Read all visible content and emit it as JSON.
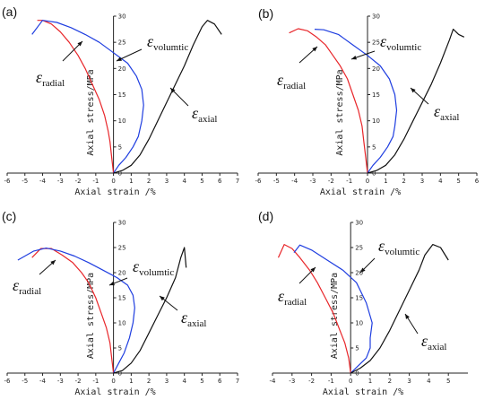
{
  "chart_data": [
    {
      "type": "line",
      "panel_label": "(a)",
      "xlabel": "Axial strain /%",
      "ylabel": "Axial stress/MPa",
      "xlim": [
        -6,
        7
      ],
      "ylim": [
        0,
        30
      ],
      "xticks": [
        -6,
        -5,
        -4,
        -3,
        -2,
        -1,
        0,
        1,
        2,
        3,
        4,
        5,
        6,
        7
      ],
      "yticks": [
        0,
        5,
        10,
        15,
        20,
        25,
        30
      ],
      "series": [
        {
          "name": "radial",
          "color": "#e8262a",
          "x": [
            0,
            -0.1,
            -0.2,
            -0.3,
            -0.5,
            -0.8,
            -1.2,
            -1.6,
            -2.0,
            -2.5,
            -3.0,
            -3.5,
            -4.0,
            -4.3
          ],
          "y": [
            0,
            3,
            6,
            8,
            11,
            14,
            17,
            20,
            22.5,
            25,
            27,
            28.5,
            29.2,
            29.2
          ]
        },
        {
          "name": "volumtic",
          "color": "#1f3ee0",
          "x": [
            0,
            0.3,
            0.7,
            1.1,
            1.4,
            1.6,
            1.7,
            1.6,
            1.3,
            0.8,
            0,
            -0.8,
            -1.6,
            -2.4,
            -3.2,
            -4.0,
            -4.6
          ],
          "y": [
            0,
            1.5,
            3,
            5,
            7,
            10,
            13,
            16,
            18.5,
            21,
            23,
            25,
            26.5,
            27.8,
            28.8,
            29.2,
            26.5
          ]
        },
        {
          "name": "axial",
          "color": "#111111",
          "x": [
            0,
            0.5,
            1.0,
            1.5,
            2.0,
            2.5,
            3.0,
            3.5,
            4.0,
            4.5,
            5.0,
            5.3,
            5.7,
            6.1
          ],
          "y": [
            0,
            0.5,
            1.5,
            3.5,
            6.5,
            10,
            13.5,
            17,
            20.5,
            24.5,
            28,
            29.2,
            28.5,
            26.5
          ]
        }
      ],
      "annotations": [
        {
          "symbol": "ε",
          "sub": "radial"
        },
        {
          "symbol": "ε",
          "sub": "volumtic"
        },
        {
          "symbol": "ε",
          "sub": "axial"
        }
      ]
    },
    {
      "type": "line",
      "panel_label": "(b)",
      "xlabel": "Axial strain /%",
      "ylabel": "Axial stress/MPa",
      "xlim": [
        -6,
        6
      ],
      "ylim": [
        0,
        30
      ],
      "xticks": [
        -6,
        -5,
        -4,
        -3,
        -2,
        -1,
        0,
        1,
        2,
        3,
        4,
        5,
        6
      ],
      "yticks": [
        0,
        5,
        10,
        15,
        20,
        25,
        30
      ],
      "series": [
        {
          "name": "radial",
          "color": "#e8262a",
          "x": [
            0,
            -0.1,
            -0.2,
            -0.3,
            -0.5,
            -0.8,
            -1.1,
            -1.5,
            -1.9,
            -2.3,
            -2.8,
            -3.3,
            -3.8,
            -4.3
          ],
          "y": [
            0,
            3,
            6,
            9,
            12,
            15,
            18,
            20.5,
            22.5,
            24.5,
            26,
            27.2,
            27.6,
            26.8
          ]
        },
        {
          "name": "volumtic",
          "color": "#1f3ee0",
          "x": [
            0,
            0.3,
            0.7,
            1.1,
            1.4,
            1.5,
            1.6,
            1.5,
            1.2,
            0.7,
            0,
            -0.8,
            -1.6,
            -2.4,
            -2.9
          ],
          "y": [
            0,
            1.5,
            3,
            5,
            7,
            9,
            12,
            15,
            18,
            20.5,
            22.5,
            24.5,
            26.5,
            27.4,
            27.5
          ]
        },
        {
          "name": "axial",
          "color": "#111111",
          "x": [
            0,
            0.5,
            1.0,
            1.5,
            2.0,
            2.5,
            3.0,
            3.5,
            4.0,
            4.5,
            4.7,
            5.0,
            5.3
          ],
          "y": [
            0,
            0.5,
            1.5,
            3.5,
            6.5,
            10,
            13.5,
            17,
            21,
            25.5,
            27.5,
            26.5,
            26
          ]
        }
      ],
      "annotations": [
        {
          "symbol": "ε",
          "sub": "radial"
        },
        {
          "symbol": "ε",
          "sub": "volumtic"
        },
        {
          "symbol": "ε",
          "sub": "axial"
        }
      ]
    },
    {
      "type": "line",
      "panel_label": "(c)",
      "xlabel": "Axial strain /%",
      "ylabel": "Axial stress/MPa",
      "xlim": [
        -6,
        7
      ],
      "ylim": [
        0,
        30
      ],
      "xticks": [
        -6,
        -5,
        -4,
        -3,
        -2,
        -1,
        0,
        1,
        2,
        3,
        4,
        5,
        6,
        7
      ],
      "yticks": [
        0,
        5,
        10,
        15,
        20,
        25,
        30
      ],
      "series": [
        {
          "name": "radial",
          "color": "#e8262a",
          "x": [
            0,
            -0.1,
            -0.2,
            -0.4,
            -0.7,
            -1.0,
            -1.4,
            -1.8,
            -2.3,
            -2.9,
            -3.5,
            -4.1,
            -4.6
          ],
          "y": [
            0,
            3,
            6,
            9,
            12,
            15,
            18,
            20,
            22,
            23.5,
            24.8,
            24.8,
            23
          ]
        },
        {
          "name": "volumtic",
          "color": "#1f3ee0",
          "x": [
            0,
            0.3,
            0.6,
            0.9,
            1.1,
            1.2,
            1.1,
            0.8,
            0.2,
            -0.6,
            -1.4,
            -2.2,
            -3.0,
            -3.8,
            -4.5,
            -5.4
          ],
          "y": [
            0,
            2,
            4,
            7,
            10,
            13,
            15.5,
            17.5,
            19,
            20.5,
            22,
            23.3,
            24.3,
            24.9,
            24.3,
            22.5
          ]
        },
        {
          "name": "axial",
          "color": "#111111",
          "x": [
            0,
            0.5,
            1.0,
            1.5,
            2.0,
            2.5,
            3.0,
            3.5,
            3.8,
            4.0,
            4.1
          ],
          "y": [
            0,
            0.5,
            2,
            4.5,
            8,
            11.5,
            15,
            19,
            23,
            25,
            21
          ]
        }
      ],
      "annotations": [
        {
          "symbol": "ε",
          "sub": "radial"
        },
        {
          "symbol": "ε",
          "sub": "volumtic"
        },
        {
          "symbol": "ε",
          "sub": "axial"
        }
      ]
    },
    {
      "type": "line",
      "panel_label": "(d)",
      "xlabel": "Axial strain /%",
      "ylabel": "Axial stress/MPa",
      "xlim": [
        -4,
        6
      ],
      "ylim": [
        0,
        30
      ],
      "xticks": [
        -4,
        -3,
        -2,
        -1,
        0,
        1,
        2,
        3,
        4,
        5
      ],
      "yticks": [
        0,
        5,
        10,
        15,
        20,
        25,
        30
      ],
      "series": [
        {
          "name": "radial",
          "color": "#e8262a",
          "x": [
            0,
            -0.1,
            -0.3,
            -0.6,
            -0.9,
            -1.3,
            -1.7,
            -2.1,
            -2.6,
            -3.0,
            -3.4,
            -3.7
          ],
          "y": [
            0,
            3,
            6,
            9,
            12,
            15,
            18,
            20.5,
            23,
            24.8,
            25.6,
            23
          ]
        },
        {
          "name": "volumtic",
          "color": "#1f3ee0",
          "x": [
            0,
            0.4,
            0.8,
            1.0,
            1.0,
            1.1,
            0.8,
            0.3,
            -0.4,
            -1.2,
            -2.0,
            -2.6,
            -2.9
          ],
          "y": [
            0,
            1.5,
            3,
            5,
            7,
            10,
            14,
            18,
            20.5,
            22.5,
            24.5,
            25.5,
            24
          ]
        },
        {
          "name": "axial",
          "color": "#111111",
          "x": [
            0,
            0.5,
            1.0,
            1.5,
            2.0,
            2.5,
            3.0,
            3.5,
            3.8,
            4.2,
            4.6,
            5.0
          ],
          "y": [
            0,
            1,
            2.5,
            5,
            8.5,
            12.5,
            16.5,
            20.5,
            23.5,
            25.6,
            25,
            22.5
          ]
        }
      ],
      "annotations": [
        {
          "symbol": "ε",
          "sub": "radial"
        },
        {
          "symbol": "ε",
          "sub": "volumtic"
        },
        {
          "symbol": "ε",
          "sub": "axial"
        }
      ]
    }
  ]
}
